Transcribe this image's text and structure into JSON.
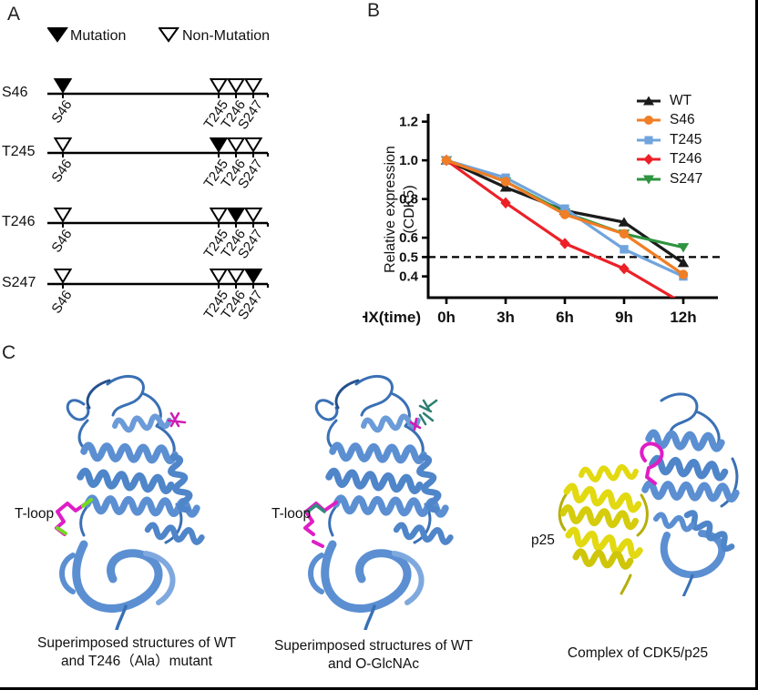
{
  "figure": {
    "panel_a_label": "A",
    "panel_b_label": "B",
    "panel_c_label": "C"
  },
  "panelA": {
    "legend": [
      {
        "type": "filled",
        "label": "Mutation"
      },
      {
        "type": "open",
        "label": "Non-Mutation"
      }
    ],
    "site_labels": [
      "S46",
      "T245",
      "T246",
      "S247"
    ],
    "rows": [
      {
        "name": "S46",
        "filled_index": 0
      },
      {
        "name": "T245",
        "filled_index": 1
      },
      {
        "name": "T246",
        "filled_index": 2
      },
      {
        "name": "S247",
        "filled_index": 3
      }
    ]
  },
  "chart_data": {
    "type": "line",
    "title": "",
    "xlabel": "CHX(time)",
    "ylabel_lines": [
      "Relative expression",
      "(CDK5)"
    ],
    "x_categories": [
      "0h",
      "3h",
      "6h",
      "9h",
      "12h"
    ],
    "x_values": [
      0,
      3,
      6,
      9,
      12
    ],
    "yticks": [
      0.4,
      0.5,
      0.6,
      0.8,
      1.0,
      1.2
    ],
    "ylim": [
      0.29,
      1.26
    ],
    "reference_line_y": 0.5,
    "grid": false,
    "legend_position": "right-top",
    "series": [
      {
        "name": "WT",
        "color": "#1b1b1b",
        "marker": "triangle-up",
        "values": [
          1.0,
          0.86,
          0.74,
          0.68,
          0.47
        ]
      },
      {
        "name": "S46",
        "color": "#f07e26",
        "marker": "circle",
        "values": [
          1.0,
          0.89,
          0.72,
          0.62,
          0.41
        ]
      },
      {
        "name": "T245",
        "color": "#70a4dd",
        "marker": "square",
        "values": [
          1.0,
          0.91,
          0.75,
          0.54,
          0.4
        ]
      },
      {
        "name": "T246",
        "color": "#ec2127",
        "marker": "diamond",
        "values": [
          1.0,
          0.78,
          0.57,
          0.44,
          0.26
        ]
      },
      {
        "name": "S247",
        "color": "#2e9440",
        "marker": "triangle-down",
        "values": [
          1.0,
          0.89,
          0.73,
          0.62,
          0.55
        ]
      }
    ]
  },
  "panelC": {
    "structures": [
      {
        "annotation": "T-loop",
        "caption_lines": [
          "Superimposed structures of WT",
          "and T246（Ala）mutant"
        ]
      },
      {
        "annotation": "T-loop",
        "caption_lines": [
          "Superimposed structures of WT",
          "and O-GlcNAc"
        ]
      },
      {
        "annotation": "p25",
        "caption_lines": [
          "Complex of CDK5/p25"
        ]
      }
    ]
  }
}
